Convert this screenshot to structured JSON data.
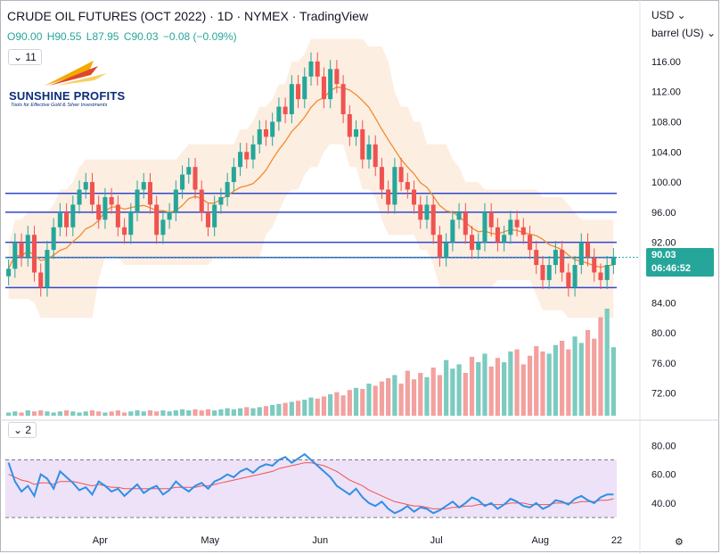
{
  "header": {
    "title": "CRUDE OIL FUTURES (OCT 2022) · 1D · NYMEX · TradingView",
    "ohlc": {
      "o": "O90.00",
      "h": "H90.55",
      "l": "L87.95",
      "c": "C90.03",
      "change": "−0.08 (−0.09%)"
    },
    "indicator_count_main": "11",
    "indicator_count_rsi": "2",
    "currency": "USD",
    "unit": "barrel (US)",
    "colors": {
      "up": "#26a69a",
      "down": "#ef5350"
    }
  },
  "logo": {
    "name": "SUNSHINE PROFITS",
    "tagline": "Tools for Effective Gold & Silver Investments"
  },
  "price_label": {
    "price": "90.03",
    "countdown": "06:46:52"
  },
  "chart_data": [
    {
      "type": "candlestick",
      "title": "CRUDE OIL FUTURES (OCT 2022)",
      "timeframe": "1D",
      "y_ticks": [
        "116.00",
        "112.00",
        "108.00",
        "104.00",
        "100.00",
        "96.00",
        "92.00",
        "88.00",
        "84.00",
        "80.00",
        "76.00",
        "72.00"
      ],
      "x_ticks": [
        "Apr",
        "May",
        "Jun",
        "Jul",
        "Aug",
        "22"
      ],
      "ylim": [
        69,
        118
      ],
      "close": [
        88.5,
        92,
        90,
        93,
        88,
        86,
        91,
        94,
        96,
        94,
        97,
        99,
        100,
        97,
        95,
        98,
        97,
        94,
        93,
        96,
        99,
        100,
        97,
        93,
        95,
        96,
        99,
        101,
        102,
        99,
        96,
        94,
        97,
        98,
        100,
        102,
        104,
        103,
        105,
        107,
        106,
        108,
        110,
        109,
        113,
        111,
        114,
        116,
        114,
        111,
        115,
        113,
        109,
        106,
        107,
        103,
        105,
        102,
        99,
        97,
        102,
        100,
        99,
        97,
        95,
        97,
        93,
        90,
        92,
        95,
        96,
        93,
        91,
        92,
        96,
        94,
        92,
        93,
        95,
        94,
        93,
        91,
        89,
        87,
        89,
        91,
        88,
        86,
        89,
        92,
        90,
        88,
        87,
        89,
        90.03
      ],
      "volume_relative": [
        0.03,
        0.04,
        0.03,
        0.05,
        0.04,
        0.05,
        0.04,
        0.03,
        0.04,
        0.05,
        0.04,
        0.03,
        0.04,
        0.05,
        0.04,
        0.03,
        0.04,
        0.05,
        0.03,
        0.04,
        0.05,
        0.04,
        0.05,
        0.04,
        0.05,
        0.04,
        0.05,
        0.06,
        0.05,
        0.06,
        0.05,
        0.06,
        0.05,
        0.06,
        0.07,
        0.06,
        0.07,
        0.08,
        0.07,
        0.08,
        0.09,
        0.1,
        0.11,
        0.12,
        0.13,
        0.14,
        0.15,
        0.17,
        0.16,
        0.18,
        0.2,
        0.22,
        0.19,
        0.24,
        0.26,
        0.25,
        0.3,
        0.28,
        0.32,
        0.35,
        0.38,
        0.3,
        0.42,
        0.34,
        0.4,
        0.36,
        0.45,
        0.38,
        0.52,
        0.44,
        0.48,
        0.4,
        0.55,
        0.5,
        0.58,
        0.46,
        0.54,
        0.5,
        0.6,
        0.62,
        0.48,
        0.56,
        0.65,
        0.6,
        0.58,
        0.66,
        0.7,
        0.62,
        0.74,
        0.68,
        0.8,
        0.72,
        0.92,
        1.0,
        0.64
      ],
      "horizontal_levels": [
        98.5,
        96,
        92,
        90,
        86
      ]
    },
    {
      "type": "line",
      "title": "RSI",
      "y_ticks": [
        "80.00",
        "60.00",
        "40.00"
      ],
      "ylim": [
        22,
        92
      ],
      "band": [
        30,
        70
      ],
      "rsi": [
        68,
        55,
        48,
        52,
        45,
        60,
        57,
        50,
        62,
        58,
        54,
        49,
        51,
        46,
        55,
        52,
        48,
        50,
        45,
        49,
        53,
        47,
        50,
        52,
        46,
        49,
        55,
        51,
        48,
        52,
        54,
        50,
        55,
        57,
        60,
        58,
        62,
        64,
        61,
        65,
        67,
        66,
        70,
        72,
        68,
        71,
        74,
        70,
        66,
        62,
        58,
        52,
        49,
        46,
        50,
        44,
        40,
        38,
        41,
        36,
        33,
        35,
        38,
        34,
        37,
        36,
        33,
        35,
        38,
        41,
        37,
        40,
        44,
        42,
        38,
        40,
        36,
        39,
        43,
        41,
        38,
        37,
        40,
        36,
        38,
        42,
        41,
        39,
        43,
        45,
        42,
        40,
        44,
        46,
        46
      ],
      "signal": [
        60,
        58,
        56,
        55,
        53,
        54,
        54,
        53,
        55,
        55,
        55,
        54,
        53,
        52,
        53,
        52,
        51,
        51,
        50,
        50,
        50,
        50,
        50,
        50,
        50,
        50,
        51,
        51,
        51,
        51,
        52,
        52,
        53,
        54,
        55,
        56,
        57,
        58,
        59,
        60,
        61,
        62,
        64,
        65,
        66,
        67,
        68,
        68,
        67,
        66,
        64,
        62,
        59,
        56,
        54,
        52,
        49,
        47,
        45,
        43,
        41,
        40,
        39,
        38,
        38,
        37,
        36,
        36,
        36,
        37,
        37,
        38,
        38,
        39,
        39,
        39,
        39,
        39,
        40,
        40,
        40,
        39,
        39,
        39,
        39,
        40,
        40,
        40,
        40,
        41,
        41,
        41,
        42,
        42,
        43
      ]
    }
  ]
}
